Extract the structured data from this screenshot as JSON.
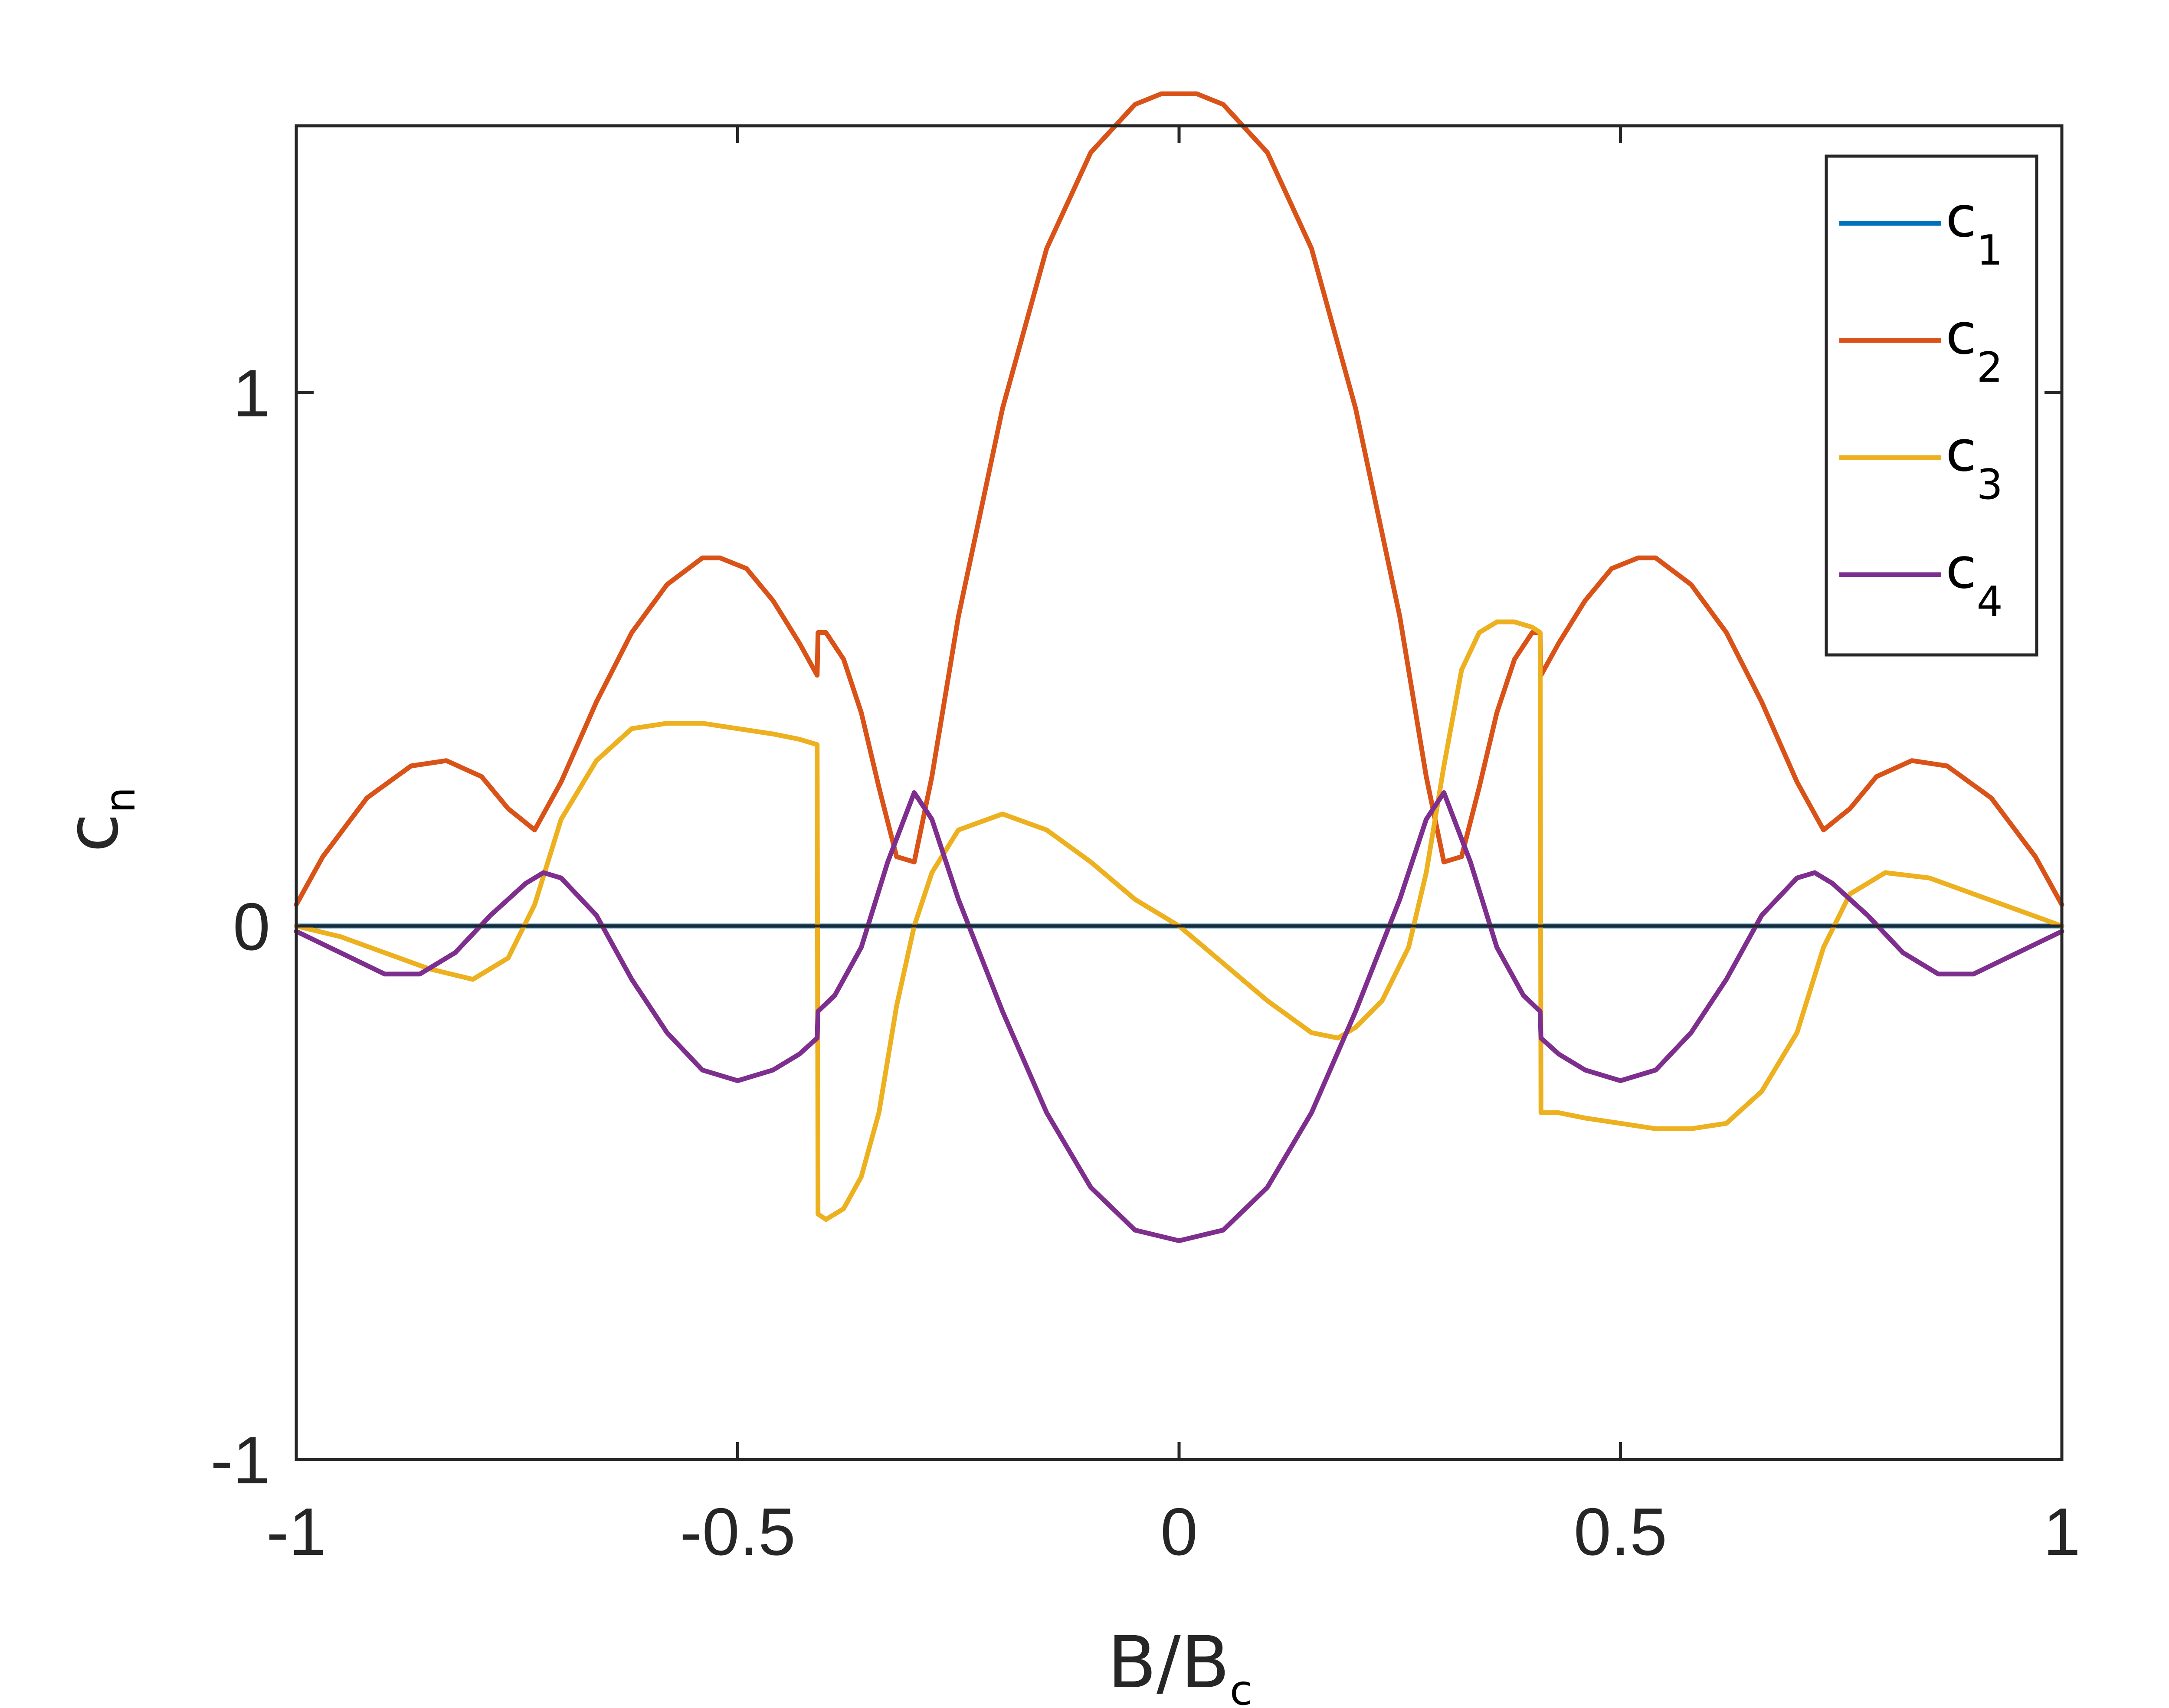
{
  "chart_data": {
    "type": "line",
    "xlabel": "B/B",
    "xlabel_sub": "c",
    "ylabel": "c",
    "ylabel_sub": "n",
    "xlim": [
      -1,
      1
    ],
    "ylim": [
      -1,
      1.5
    ],
    "xticks": [
      -1,
      -0.5,
      0,
      0.5,
      1
    ],
    "xtick_labels": [
      "-1",
      "-0.5",
      "0",
      "0.5",
      "1"
    ],
    "yticks": [
      -1,
      0,
      1
    ],
    "ytick_labels": [
      "-1",
      "0",
      "1"
    ],
    "grid": false,
    "legend_position": "top-right",
    "series": [
      {
        "name": "c",
        "sub": "1",
        "color": "#0072BD",
        "x": [
          -1,
          0,
          1
        ],
        "y": [
          0,
          0,
          0
        ]
      },
      {
        "name": "c",
        "sub": "2",
        "color": "#D95319",
        "x": [
          -1,
          -0.97,
          -0.92,
          -0.87,
          -0.83,
          -0.79,
          -0.76,
          -0.73,
          -0.7,
          -0.66,
          -0.62,
          -0.58,
          -0.54,
          -0.52,
          -0.49,
          -0.46,
          -0.43,
          -0.41,
          -0.409,
          -0.4,
          -0.38,
          -0.36,
          -0.34,
          -0.32,
          -0.3,
          -0.28,
          -0.25,
          -0.2,
          -0.15,
          -0.1,
          -0.05,
          -0.02,
          0,
          0.02,
          0.05,
          0.1,
          0.15,
          0.2,
          0.25,
          0.28,
          0.3,
          0.32,
          0.34,
          0.36,
          0.38,
          0.4,
          0.409,
          0.41,
          0.43,
          0.46,
          0.49,
          0.52,
          0.54,
          0.58,
          0.62,
          0.66,
          0.7,
          0.73,
          0.76,
          0.79,
          0.83,
          0.87,
          0.92,
          0.97,
          1
        ],
        "y": [
          0.04,
          0.13,
          0.24,
          0.3,
          0.31,
          0.28,
          0.22,
          0.18,
          0.27,
          0.42,
          0.55,
          0.64,
          0.69,
          0.69,
          0.67,
          0.61,
          0.53,
          0.47,
          0.55,
          0.55,
          0.5,
          0.4,
          0.26,
          0.13,
          0.12,
          0.28,
          0.58,
          0.97,
          1.27,
          1.45,
          1.54,
          1.56,
          1.56,
          1.56,
          1.54,
          1.45,
          1.27,
          0.97,
          0.58,
          0.28,
          0.12,
          0.13,
          0.26,
          0.4,
          0.5,
          0.55,
          0.55,
          0.47,
          0.53,
          0.61,
          0.67,
          0.69,
          0.69,
          0.64,
          0.55,
          0.42,
          0.27,
          0.18,
          0.22,
          0.28,
          0.31,
          0.3,
          0.24,
          0.13,
          0.04
        ]
      },
      {
        "name": "c",
        "sub": "3",
        "color": "#EDB120",
        "x": [
          -1,
          -0.95,
          -0.9,
          -0.85,
          -0.8,
          -0.76,
          -0.73,
          -0.7,
          -0.66,
          -0.62,
          -0.58,
          -0.54,
          -0.5,
          -0.46,
          -0.43,
          -0.41,
          -0.409,
          -0.4,
          -0.38,
          -0.36,
          -0.34,
          -0.32,
          -0.3,
          -0.28,
          -0.25,
          -0.2,
          -0.15,
          -0.1,
          -0.05,
          0,
          0.05,
          0.1,
          0.15,
          0.18,
          0.2,
          0.23,
          0.26,
          0.28,
          0.3,
          0.32,
          0.34,
          0.36,
          0.38,
          0.4,
          0.409,
          0.41,
          0.43,
          0.46,
          0.5,
          0.54,
          0.58,
          0.62,
          0.66,
          0.7,
          0.73,
          0.76,
          0.8,
          0.85,
          0.9,
          0.95,
          1
        ],
        "y": [
          0,
          -0.02,
          -0.05,
          -0.08,
          -0.1,
          -0.06,
          0.04,
          0.2,
          0.31,
          0.37,
          0.38,
          0.38,
          0.37,
          0.36,
          0.35,
          0.34,
          -0.54,
          -0.55,
          -0.53,
          -0.47,
          -0.35,
          -0.15,
          0.0,
          0.1,
          0.18,
          0.21,
          0.18,
          0.12,
          0.05,
          0.0,
          -0.07,
          -0.14,
          -0.2,
          -0.21,
          -0.19,
          -0.14,
          -0.04,
          0.1,
          0.3,
          0.48,
          0.55,
          0.57,
          0.57,
          0.56,
          0.55,
          -0.35,
          -0.35,
          -0.36,
          -0.37,
          -0.38,
          -0.38,
          -0.37,
          -0.31,
          -0.2,
          -0.04,
          0.06,
          0.1,
          0.09,
          0.06,
          0.03,
          0
        ]
      },
      {
        "name": "c",
        "sub": "4",
        "color": "#7E2F8E",
        "x": [
          -1,
          -0.95,
          -0.9,
          -0.86,
          -0.82,
          -0.78,
          -0.74,
          -0.72,
          -0.7,
          -0.66,
          -0.62,
          -0.58,
          -0.54,
          -0.5,
          -0.46,
          -0.43,
          -0.41,
          -0.409,
          -0.39,
          -0.36,
          -0.33,
          -0.3,
          -0.28,
          -0.25,
          -0.2,
          -0.15,
          -0.1,
          -0.05,
          0,
          0.05,
          0.1,
          0.15,
          0.2,
          0.25,
          0.28,
          0.3,
          0.33,
          0.36,
          0.39,
          0.409,
          0.41,
          0.43,
          0.46,
          0.5,
          0.54,
          0.58,
          0.62,
          0.66,
          0.7,
          0.72,
          0.74,
          0.78,
          0.82,
          0.86,
          0.9,
          0.95,
          1
        ],
        "y": [
          -0.01,
          -0.05,
          -0.09,
          -0.09,
          -0.05,
          0.02,
          0.08,
          0.1,
          0.09,
          0.02,
          -0.1,
          -0.2,
          -0.27,
          -0.29,
          -0.27,
          -0.24,
          -0.21,
          -0.16,
          -0.13,
          -0.04,
          0.12,
          0.25,
          0.2,
          0.05,
          -0.16,
          -0.35,
          -0.49,
          -0.57,
          -0.59,
          -0.57,
          -0.49,
          -0.35,
          -0.16,
          0.05,
          0.2,
          0.25,
          0.12,
          -0.04,
          -0.13,
          -0.16,
          -0.21,
          -0.24,
          -0.27,
          -0.29,
          -0.27,
          -0.2,
          -0.1,
          0.02,
          0.09,
          0.1,
          0.08,
          0.02,
          -0.05,
          -0.09,
          -0.09,
          -0.05,
          -0.01
        ]
      }
    ]
  }
}
